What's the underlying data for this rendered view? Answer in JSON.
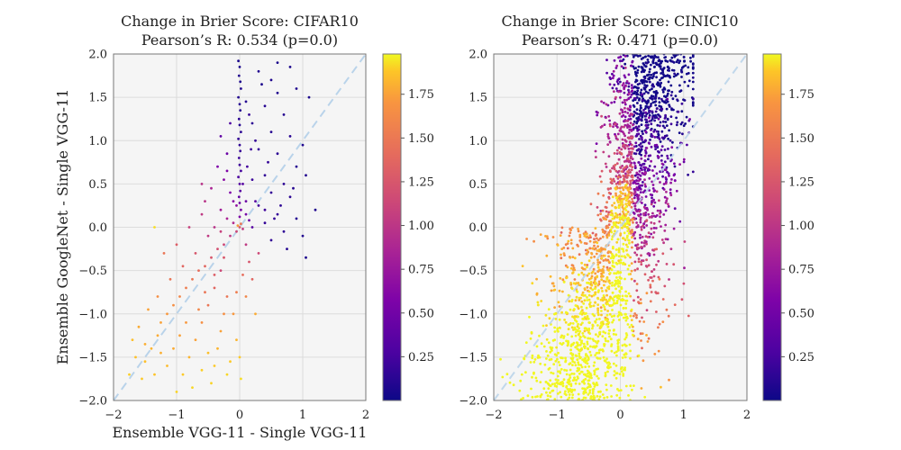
{
  "xlabel": "Ensemble VGG-11 - Single VGG-11",
  "ylabel": "Ensemble GoogleNet - Single VGG-11",
  "chart_data": [
    {
      "type": "scatter",
      "title": "Change in Brier Score: CIFAR10",
      "subtitle": "Pearson’s R: 0.534 (p=0.0)",
      "xlim": [
        -2,
        2
      ],
      "ylim": [
        -2,
        2
      ],
      "x_ticks": [
        "−2",
        "−1",
        "0",
        "1",
        "2"
      ],
      "y_ticks": [
        "−2.0",
        "−1.5",
        "−1.0",
        "−0.5",
        "0.0",
        "0.5",
        "1.0",
        "1.5",
        "2.0"
      ],
      "grid": true,
      "reference_line": "y = x (dashed, light blue)",
      "colormap": "plasma",
      "color_range": [
        0,
        1.98
      ],
      "colorbar_ticks": [
        "0.25",
        "0.50",
        "0.75",
        "1.00",
        "1.25",
        "1.50",
        "1.75"
      ],
      "points": [
        [
          -0.02,
          1.92,
          0.05
        ],
        [
          0.0,
          1.85,
          0.06
        ],
        [
          -0.01,
          1.75,
          0.08
        ],
        [
          0.01,
          1.68,
          0.06
        ],
        [
          0.02,
          1.6,
          0.07
        ],
        [
          -0.02,
          1.5,
          0.08
        ],
        [
          0.0,
          1.42,
          0.1
        ],
        [
          0.01,
          1.35,
          0.09
        ],
        [
          -0.01,
          1.25,
          0.12
        ],
        [
          0.0,
          1.18,
          0.1
        ],
        [
          0.02,
          1.1,
          0.12
        ],
        [
          -0.02,
          1.02,
          0.15
        ],
        [
          0.0,
          0.95,
          0.14
        ],
        [
          0.01,
          0.88,
          0.16
        ],
        [
          -0.01,
          0.8,
          0.18
        ],
        [
          0.0,
          0.72,
          0.2
        ],
        [
          0.02,
          0.65,
          0.22
        ],
        [
          -0.02,
          0.58,
          0.25
        ],
        [
          0.0,
          0.5,
          0.28
        ],
        [
          0.01,
          0.42,
          0.3
        ],
        [
          -0.01,
          0.35,
          0.35
        ],
        [
          0.0,
          0.28,
          0.4
        ],
        [
          0.02,
          0.2,
          0.45
        ],
        [
          0.0,
          0.12,
          0.5
        ],
        [
          0.3,
          1.8,
          0.08
        ],
        [
          0.5,
          1.7,
          0.07
        ],
        [
          0.6,
          1.9,
          0.05
        ],
        [
          0.8,
          1.85,
          0.06
        ],
        [
          0.9,
          1.6,
          0.07
        ],
        [
          1.1,
          1.5,
          0.06
        ],
        [
          0.4,
          1.4,
          0.1
        ],
        [
          0.7,
          1.3,
          0.09
        ],
        [
          0.2,
          1.2,
          0.12
        ],
        [
          0.5,
          1.1,
          0.1
        ],
        [
          0.8,
          1.05,
          0.11
        ],
        [
          1.0,
          0.95,
          0.08
        ],
        [
          0.3,
          0.9,
          0.15
        ],
        [
          0.6,
          0.85,
          0.12
        ],
        [
          0.9,
          0.7,
          0.1
        ],
        [
          0.4,
          0.6,
          0.14
        ],
        [
          0.7,
          0.5,
          0.12
        ],
        [
          0.2,
          0.55,
          0.18
        ],
        [
          0.5,
          0.4,
          0.15
        ],
        [
          0.8,
          0.35,
          0.12
        ],
        [
          1.2,
          0.2,
          0.08
        ],
        [
          0.3,
          0.25,
          0.2
        ],
        [
          0.6,
          0.15,
          0.15
        ],
        [
          0.9,
          0.1,
          0.1
        ],
        [
          0.4,
          0.05,
          0.15
        ],
        [
          0.7,
          -0.05,
          0.12
        ],
        [
          1.0,
          -0.1,
          0.08
        ],
        [
          0.5,
          -0.15,
          0.15
        ],
        [
          0.2,
          0.0,
          0.3
        ],
        [
          0.15,
          0.08,
          0.4
        ],
        [
          0.1,
          0.15,
          0.45
        ],
        [
          0.25,
          0.3,
          0.3
        ],
        [
          1.05,
          -0.35,
          0.06
        ],
        [
          0.75,
          -0.25,
          0.1
        ],
        [
          0.6,
          1.55,
          0.08
        ],
        [
          0.35,
          1.65,
          0.06
        ],
        [
          0.15,
          1.3,
          0.15
        ],
        [
          -0.15,
          1.2,
          0.25
        ],
        [
          -0.3,
          1.05,
          0.35
        ],
        [
          -0.2,
          0.85,
          0.4
        ],
        [
          -0.35,
          0.7,
          0.5
        ],
        [
          -0.25,
          0.55,
          0.55
        ],
        [
          -0.15,
          0.4,
          0.5
        ],
        [
          -0.1,
          0.3,
          0.55
        ],
        [
          -0.05,
          0.25,
          0.6
        ],
        [
          -0.45,
          0.45,
          0.75
        ],
        [
          -0.55,
          0.3,
          0.85
        ],
        [
          -0.6,
          0.15,
          0.9
        ],
        [
          -0.3,
          0.2,
          0.7
        ],
        [
          -0.2,
          0.1,
          0.75
        ],
        [
          -0.1,
          0.05,
          0.8
        ],
        [
          -0.05,
          -0.05,
          1.0
        ],
        [
          0.0,
          0.0,
          1.1
        ],
        [
          0.02,
          0.04,
          1.3
        ],
        [
          -0.03,
          0.02,
          1.5
        ],
        [
          0.05,
          -0.02,
          0.9
        ],
        [
          -0.15,
          -0.1,
          0.9
        ],
        [
          -0.25,
          -0.2,
          1.0
        ],
        [
          -0.35,
          -0.25,
          1.05
        ],
        [
          -0.45,
          -0.35,
          1.1
        ],
        [
          -0.55,
          -0.45,
          1.2
        ],
        [
          -0.65,
          -0.5,
          1.25
        ],
        [
          -0.75,
          -0.6,
          1.3
        ],
        [
          -0.85,
          -0.7,
          1.35
        ],
        [
          -0.95,
          -0.8,
          1.4
        ],
        [
          -1.05,
          -0.9,
          1.45
        ],
        [
          -1.15,
          -1.0,
          1.5
        ],
        [
          -1.25,
          -1.1,
          1.55
        ],
        [
          -1.3,
          -1.25,
          1.6
        ],
        [
          -1.4,
          -1.4,
          1.65
        ],
        [
          -1.5,
          -1.55,
          1.7
        ],
        [
          -1.55,
          -1.75,
          1.75
        ],
        [
          -0.5,
          -0.1,
          0.9
        ],
        [
          -0.7,
          -0.3,
          1.1
        ],
        [
          -0.9,
          -0.45,
          1.2
        ],
        [
          -1.1,
          -0.6,
          1.3
        ],
        [
          -1.3,
          -0.8,
          1.45
        ],
        [
          -1.45,
          -0.95,
          1.55
        ],
        [
          -1.6,
          -1.15,
          1.6
        ],
        [
          -1.7,
          -1.3,
          1.7
        ],
        [
          -0.3,
          -0.5,
          1.0
        ],
        [
          -0.4,
          -0.7,
          1.2
        ],
        [
          -0.5,
          -0.9,
          1.3
        ],
        [
          -0.6,
          -1.1,
          1.45
        ],
        [
          -0.7,
          -1.3,
          1.55
        ],
        [
          -0.8,
          -1.5,
          1.65
        ],
        [
          -0.9,
          -1.7,
          1.75
        ],
        [
          -1.0,
          -1.9,
          1.8
        ],
        [
          -0.2,
          -0.8,
          1.3
        ],
        [
          -0.25,
          -1.0,
          1.45
        ],
        [
          -0.3,
          -1.2,
          1.55
        ],
        [
          -0.35,
          -1.4,
          1.65
        ],
        [
          -0.4,
          -1.6,
          1.75
        ],
        [
          -0.45,
          -1.8,
          1.8
        ],
        [
          -0.1,
          -1.0,
          1.5
        ],
        [
          -0.05,
          -1.3,
          1.65
        ],
        [
          0.0,
          -1.5,
          1.75
        ],
        [
          0.02,
          -1.75,
          1.85
        ],
        [
          -0.15,
          -1.55,
          1.75
        ],
        [
          -0.2,
          -1.7,
          1.82
        ],
        [
          -0.5,
          -1.45,
          1.7
        ],
        [
          -0.6,
          -1.65,
          1.78
        ],
        [
          -0.75,
          -1.85,
          1.82
        ],
        [
          -1.15,
          -1.6,
          1.68
        ],
        [
          -1.25,
          -1.45,
          1.62
        ],
        [
          -1.35,
          -1.7,
          1.72
        ],
        [
          -1.5,
          -1.35,
          1.62
        ],
        [
          -1.65,
          -1.5,
          1.7
        ],
        [
          -1.75,
          -1.7,
          1.78
        ],
        [
          -1.2,
          -0.3,
          1.3
        ],
        [
          -1.0,
          -0.2,
          1.15
        ],
        [
          -0.8,
          0.0,
          0.95
        ],
        [
          -1.35,
          0.0,
          1.85
        ],
        [
          -0.6,
          0.5,
          0.85
        ],
        [
          -0.2,
          0.65,
          0.5
        ],
        [
          0.1,
          -0.2,
          0.9
        ],
        [
          0.15,
          -0.4,
          1.1
        ],
        [
          0.2,
          -0.6,
          1.2
        ],
        [
          0.1,
          -0.8,
          1.4
        ],
        [
          0.25,
          -1.0,
          1.6
        ],
        [
          0.3,
          -0.3,
          1.0
        ],
        [
          0.05,
          -0.55,
          1.25
        ],
        [
          -0.05,
          -0.75,
          1.35
        ],
        [
          -0.25,
          -0.35,
          1.1
        ],
        [
          -0.4,
          -0.55,
          1.15
        ],
        [
          -0.55,
          -0.75,
          1.3
        ],
        [
          -0.65,
          -0.95,
          1.4
        ],
        [
          -0.85,
          -1.1,
          1.5
        ],
        [
          -0.95,
          -1.25,
          1.55
        ],
        [
          -1.05,
          -1.4,
          1.6
        ],
        [
          -0.4,
          0.0,
          0.85
        ],
        [
          -0.3,
          -0.05,
          0.95
        ],
        [
          0.1,
          0.3,
          0.4
        ],
        [
          0.05,
          0.5,
          0.3
        ],
        [
          0.12,
          0.7,
          0.22
        ],
        [
          0.18,
          0.9,
          0.18
        ],
        [
          0.4,
          0.2,
          0.2
        ],
        [
          0.55,
          0.1,
          0.15
        ],
        [
          0.65,
          0.25,
          0.12
        ],
        [
          0.85,
          0.45,
          0.1
        ],
        [
          1.05,
          0.6,
          0.08
        ],
        [
          0.45,
          0.75,
          0.15
        ],
        [
          0.25,
          1.0,
          0.15
        ],
        [
          0.1,
          1.45,
          0.1
        ]
      ]
    },
    {
      "type": "scatter",
      "title": "Change in Brier Score: CINIC10",
      "subtitle": "Pearson’s R: 0.471 (p=0.0)",
      "xlim": [
        -2,
        2
      ],
      "ylim": [
        -2,
        2
      ],
      "x_ticks": [
        "−2",
        "−1",
        "0",
        "1",
        "2"
      ],
      "y_ticks": [
        "−2.0",
        "−1.5",
        "−1.0",
        "−0.5",
        "0.0",
        "0.5",
        "1.0",
        "1.5",
        "2.0"
      ],
      "grid": true,
      "reference_line": "y = x (dashed, light blue)",
      "colormap": "plasma",
      "color_range": [
        0,
        1.98
      ],
      "colorbar_ticks": [
        "0.25",
        "0.50",
        "0.75",
        "1.00",
        "1.25",
        "1.50",
        "1.75"
      ],
      "point_cloud": "dense: high-value (yellow) points concentrated near x=0 and lower-left; low-value (dark blue/purple) points in upper region x between 0 and 1.1, y up to 2.0"
    }
  ]
}
